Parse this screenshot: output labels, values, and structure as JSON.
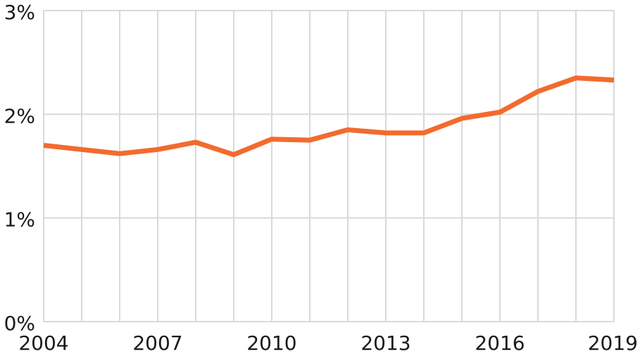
{
  "chart_data": {
    "type": "line",
    "title": "",
    "xlabel": "",
    "ylabel": "",
    "x": [
      2004,
      2005,
      2006,
      2007,
      2008,
      2009,
      2010,
      2011,
      2012,
      2013,
      2014,
      2015,
      2016,
      2017,
      2018,
      2019
    ],
    "series": [
      {
        "values": [
          1.7,
          1.66,
          1.62,
          1.66,
          1.73,
          1.61,
          1.76,
          1.75,
          1.85,
          1.82,
          1.82,
          1.96,
          2.02,
          2.22,
          2.35,
          2.33
        ],
        "color": "#f26b2e"
      }
    ],
    "xlim": [
      2004,
      2019
    ],
    "ylim": [
      0,
      3
    ],
    "x_tick_labels": [
      "2004",
      "2007",
      "2010",
      "2013",
      "2016",
      "2019"
    ],
    "x_tick_values": [
      2004,
      2007,
      2010,
      2013,
      2016,
      2019
    ],
    "y_tick_labels": [
      "0%",
      "1%",
      "2%",
      "3%"
    ],
    "y_tick_values": [
      0,
      1,
      2,
      3
    ],
    "grid": true,
    "legend": "none"
  }
}
